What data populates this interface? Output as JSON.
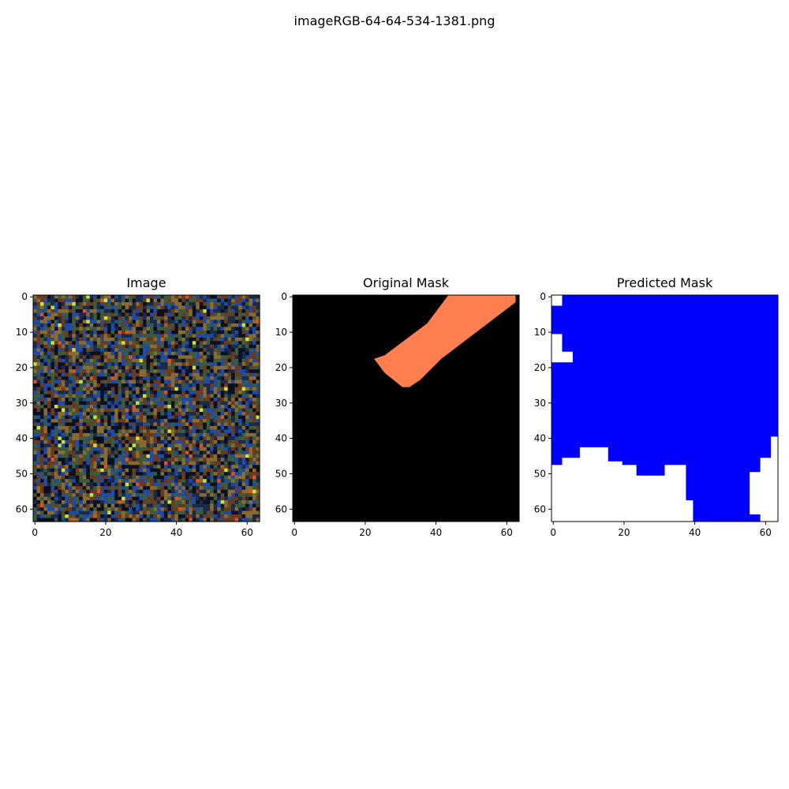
{
  "figure": {
    "title": "imageRGB-64-64-534-1381.png"
  },
  "chart_data": [
    {
      "type": "heatmap",
      "title": "Image",
      "description_kind": "rgb-image",
      "size": [
        64,
        64
      ],
      "x_ticks": [
        0,
        20,
        40,
        60
      ],
      "y_ticks": [
        0,
        10,
        20,
        30,
        40,
        50,
        60
      ],
      "xlim": [
        -0.5,
        63.5
      ],
      "ylim": [
        63.5,
        -0.5
      ],
      "colors": [
        "#1a2a4a",
        "#6b3a1e",
        "#3d5a3a",
        "#1e4aa8",
        "#8a6a30",
        "#0a1020",
        "#c8e040",
        "#e05020"
      ]
    },
    {
      "type": "heatmap",
      "title": "Original Mask",
      "size": [
        64,
        64
      ],
      "x_ticks": [
        0,
        20,
        40,
        60
      ],
      "y_ticks": [
        0,
        10,
        20,
        30,
        40,
        50,
        60
      ],
      "xlim": [
        -0.5,
        63.5
      ],
      "ylim": [
        63.5,
        -0.5
      ],
      "background": "#000000",
      "foreground": "#ff7f50",
      "mask_polygon": [
        [
          44,
          0
        ],
        [
          63,
          0
        ],
        [
          63,
          2
        ],
        [
          42,
          18
        ],
        [
          36,
          24
        ],
        [
          33,
          26
        ],
        [
          31,
          26
        ],
        [
          26,
          22
        ],
        [
          23,
          18
        ],
        [
          26,
          17
        ],
        [
          38,
          8
        ]
      ]
    },
    {
      "type": "heatmap",
      "title": "Predicted Mask",
      "size": [
        64,
        64
      ],
      "x_ticks": [
        0,
        20,
        40,
        60
      ],
      "y_ticks": [
        0,
        10,
        20,
        30,
        40,
        50,
        60
      ],
      "xlim": [
        -0.5,
        63.5
      ],
      "ylim": [
        63.5,
        -0.5
      ],
      "background": "#ffffff",
      "foreground": "#0000ff",
      "mask_polygon": [
        [
          0,
          0
        ],
        [
          64,
          0
        ],
        [
          64,
          40
        ],
        [
          62,
          40
        ],
        [
          62,
          46
        ],
        [
          59,
          46
        ],
        [
          59,
          50
        ],
        [
          56,
          50
        ],
        [
          56,
          62
        ],
        [
          59,
          62
        ],
        [
          59,
          64
        ],
        [
          40,
          64
        ],
        [
          40,
          58
        ],
        [
          38,
          58
        ],
        [
          38,
          48
        ],
        [
          32,
          48
        ],
        [
          32,
          51
        ],
        [
          24,
          51
        ],
        [
          24,
          48
        ],
        [
          20,
          48
        ],
        [
          20,
          47
        ],
        [
          16,
          47
        ],
        [
          16,
          46
        ],
        [
          16,
          43
        ],
        [
          8,
          43
        ],
        [
          8,
          46
        ],
        [
          3,
          46
        ],
        [
          3,
          48
        ],
        [
          0,
          48
        ],
        [
          0,
          19
        ],
        [
          6,
          19
        ],
        [
          6,
          16
        ],
        [
          3,
          16
        ],
        [
          3,
          11
        ],
        [
          0,
          11
        ],
        [
          0,
          3
        ],
        [
          3,
          3
        ],
        [
          3,
          0
        ]
      ]
    }
  ]
}
